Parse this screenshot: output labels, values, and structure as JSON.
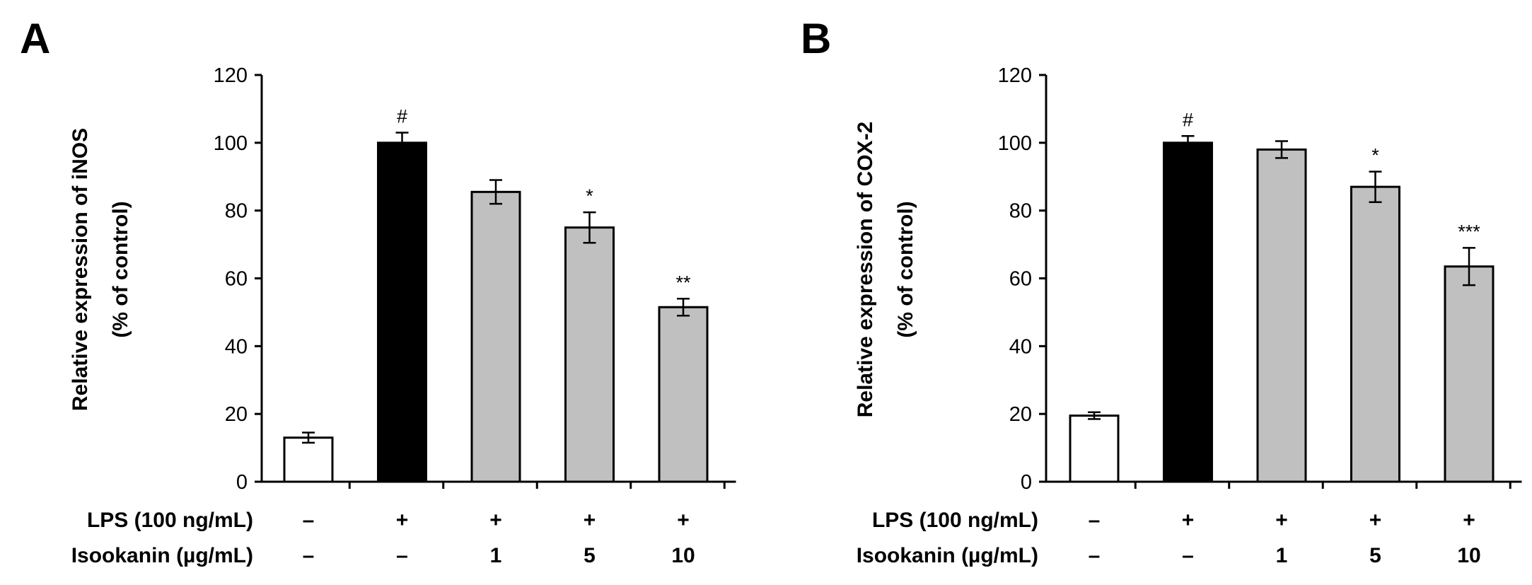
{
  "chart_data": [
    {
      "type": "bar",
      "panel": "A",
      "ylabel_line1": "Relative expression of iNOS",
      "ylabel_line2": "(% of control)",
      "ylim": [
        0,
        120
      ],
      "yticks": [
        "0",
        "20",
        "40",
        "60",
        "80",
        "100",
        "120"
      ],
      "row_labels": [
        "LPS (100 ng/mL)",
        "Isookanin (µg/mL)"
      ],
      "lps": [
        "–",
        "+",
        "+",
        "+",
        "+"
      ],
      "isookanin": [
        "–",
        "–",
        "1",
        "5",
        "10"
      ],
      "values": [
        13,
        100,
        85.5,
        75,
        51.5
      ],
      "errors": [
        1.5,
        3,
        3.5,
        4.5,
        2.5
      ],
      "significance": [
        "",
        "#",
        "",
        "*",
        "**"
      ],
      "fills": [
        "#ffffff",
        "#000000",
        "#c0c0c0",
        "#c0c0c0",
        "#c0c0c0"
      ]
    },
    {
      "type": "bar",
      "panel": "B",
      "ylabel_line1": "Relative expression of COX-2",
      "ylabel_line2": "(% of control)",
      "ylim": [
        0,
        120
      ],
      "yticks": [
        "0",
        "20",
        "40",
        "60",
        "80",
        "100",
        "120"
      ],
      "row_labels": [
        "LPS (100 ng/mL)",
        "Isookanin (µg/mL)"
      ],
      "lps": [
        "–",
        "+",
        "+",
        "+",
        "+"
      ],
      "isookanin": [
        "–",
        "–",
        "1",
        "5",
        "10"
      ],
      "values": [
        19.5,
        100,
        98,
        87,
        63.5
      ],
      "errors": [
        1,
        2,
        2.5,
        4.5,
        5.5
      ],
      "significance": [
        "",
        "#",
        "",
        "*",
        "***"
      ],
      "fills": [
        "#ffffff",
        "#000000",
        "#c0c0c0",
        "#c0c0c0",
        "#c0c0c0"
      ]
    }
  ]
}
